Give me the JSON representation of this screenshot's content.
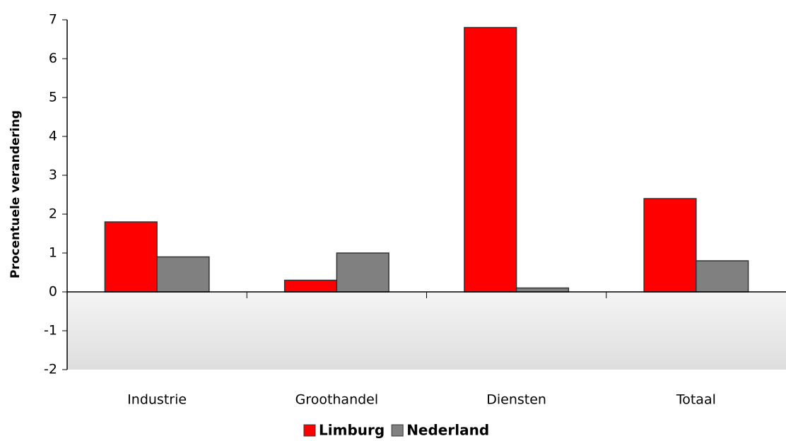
{
  "chart_data": {
    "type": "bar",
    "y_label": "Procentuele verandering",
    "categories": [
      "Industrie",
      "Groothandel",
      "Diensten",
      "Totaal"
    ],
    "series": [
      {
        "name": "Limburg",
        "color": "#ff0000",
        "values": [
          1.8,
          0.3,
          6.8,
          2.4
        ]
      },
      {
        "name": "Nederland",
        "color": "#808080",
        "values": [
          0.9,
          1.0,
          0.1,
          0.8
        ]
      }
    ],
    "ylim": [
      -2,
      7
    ],
    "yticks": [
      -2,
      -1,
      0,
      1,
      2,
      3,
      4,
      5,
      6,
      7
    ],
    "legend": "bottom"
  }
}
